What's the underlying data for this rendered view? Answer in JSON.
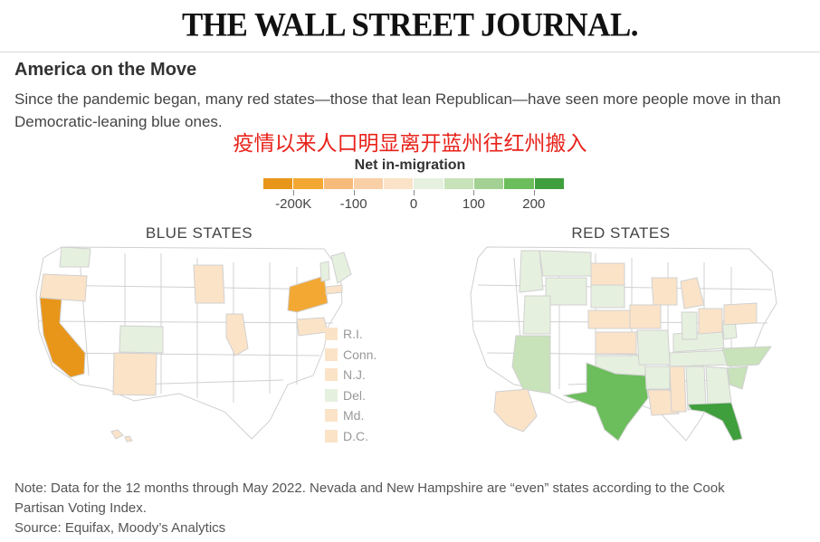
{
  "masthead": "THE WALL STREET JOURNAL.",
  "title": "America on the Move",
  "subtitle": "Since the pandemic began, many red states—those that lean Republican—have seen more people move in than Democratic-leaning blue ones.",
  "caption_cn": "疫情以来人口明显离开蓝州往红州搬入",
  "legend": {
    "title": "Net in-migration",
    "colors": [
      "#e8961a",
      "#f2a833",
      "#f6bb7a",
      "#f9cfa6",
      "#fbe3c8",
      "#e6f0df",
      "#c8e2b9",
      "#a3d193",
      "#6cbd5b",
      "#3f9f3c"
    ],
    "tick_labels": [
      "-200K",
      "-100",
      "0",
      "100",
      "200"
    ]
  },
  "maps": {
    "blue_title": "BLUE STATES",
    "red_title": "RED STATES"
  },
  "small_states": [
    {
      "label": "R.I.",
      "color": "#fbe3c8"
    },
    {
      "label": "Conn.",
      "color": "#fbe3c8"
    },
    {
      "label": "N.J.",
      "color": "#fbe3c8"
    },
    {
      "label": "Del.",
      "color": "#e6f0df"
    },
    {
      "label": "Md.",
      "color": "#fbe3c8"
    },
    {
      "label": "D.C.",
      "color": "#fbe3c8"
    }
  ],
  "colors": {
    "blank_state": "#ffffff",
    "border": "#d0d0d0",
    "california": "#e8961a",
    "new_york": "#f2a833",
    "texas": "#6cbd5b",
    "florida": "#3f9f3c"
  },
  "note_line1": "Note: Data for the 12 months through May 2022. Nevada and New Hampshire are “even” states according to the Cook",
  "note_line2": "Partisan Voting Index.",
  "source": "Source: Equifax, Moody’s Analytics"
}
